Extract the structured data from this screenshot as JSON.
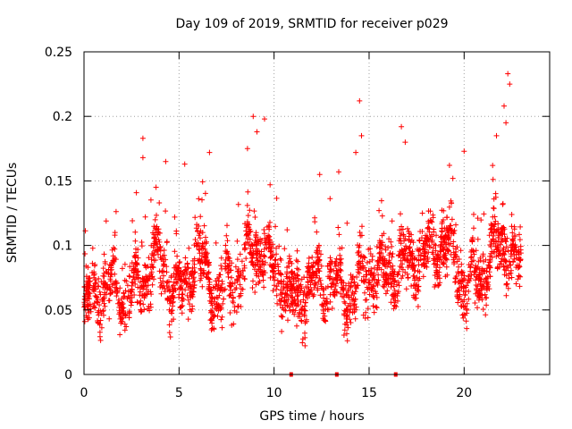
{
  "chart_data": {
    "type": "scatter",
    "title": "Day 109 of 2019, SRMTID for receiver p029",
    "xlabel": "GPS time / hours",
    "ylabel": "SRMTID / TECUs",
    "xlim": [
      0,
      24.5
    ],
    "ylim": [
      0,
      0.25
    ],
    "x_ticks": [
      0,
      5,
      10,
      15,
      20
    ],
    "x_tick_labels": [
      "0",
      "5",
      "10",
      "15",
      "20"
    ],
    "y_ticks": [
      0,
      0.05,
      0.1,
      0.15,
      0.2,
      0.25
    ],
    "y_tick_labels": [
      "0",
      "0.05",
      "0.1",
      "0.15",
      "0.2",
      "0.25"
    ],
    "grid": true,
    "marker": "plus",
    "series_color": "#ff0000",
    "series": [
      {
        "name": "SRMTID",
        "x_range": [
          0,
          23.0
        ],
        "y_range": [
          0.018,
          0.233
        ],
        "trend": [
          {
            "x": 0.0,
            "y": 0.05
          },
          {
            "x": 1.0,
            "y": 0.068
          },
          {
            "x": 2.0,
            "y": 0.062
          },
          {
            "x": 3.0,
            "y": 0.072
          },
          {
            "x": 4.0,
            "y": 0.09
          },
          {
            "x": 5.0,
            "y": 0.06
          },
          {
            "x": 6.0,
            "y": 0.092
          },
          {
            "x": 7.0,
            "y": 0.06
          },
          {
            "x": 8.0,
            "y": 0.075
          },
          {
            "x": 9.0,
            "y": 0.1
          },
          {
            "x": 10.0,
            "y": 0.085
          },
          {
            "x": 11.0,
            "y": 0.055
          },
          {
            "x": 12.0,
            "y": 0.068
          },
          {
            "x": 13.0,
            "y": 0.072
          },
          {
            "x": 14.0,
            "y": 0.06
          },
          {
            "x": 15.0,
            "y": 0.082
          },
          {
            "x": 16.0,
            "y": 0.078
          },
          {
            "x": 17.0,
            "y": 0.085
          },
          {
            "x": 18.0,
            "y": 0.095
          },
          {
            "x": 19.0,
            "y": 0.105
          },
          {
            "x": 20.0,
            "y": 0.07
          },
          {
            "x": 21.0,
            "y": 0.08
          },
          {
            "x": 22.0,
            "y": 0.105
          },
          {
            "x": 23.0,
            "y": 0.08
          }
        ],
        "outliers": [
          {
            "x": 3.1,
            "y": 0.183
          },
          {
            "x": 3.1,
            "y": 0.168
          },
          {
            "x": 4.3,
            "y": 0.165
          },
          {
            "x": 5.3,
            "y": 0.163
          },
          {
            "x": 6.6,
            "y": 0.172
          },
          {
            "x": 8.6,
            "y": 0.175
          },
          {
            "x": 8.9,
            "y": 0.2
          },
          {
            "x": 9.1,
            "y": 0.188
          },
          {
            "x": 9.5,
            "y": 0.198
          },
          {
            "x": 12.4,
            "y": 0.155
          },
          {
            "x": 13.4,
            "y": 0.157
          },
          {
            "x": 14.5,
            "y": 0.212
          },
          {
            "x": 14.6,
            "y": 0.185
          },
          {
            "x": 14.3,
            "y": 0.172
          },
          {
            "x": 16.7,
            "y": 0.192
          },
          {
            "x": 16.9,
            "y": 0.18
          },
          {
            "x": 20.0,
            "y": 0.173
          },
          {
            "x": 21.7,
            "y": 0.185
          },
          {
            "x": 21.5,
            "y": 0.162
          },
          {
            "x": 22.1,
            "y": 0.208
          },
          {
            "x": 22.3,
            "y": 0.233
          },
          {
            "x": 22.4,
            "y": 0.225
          },
          {
            "x": 22.2,
            "y": 0.195
          }
        ],
        "zero_markers": [
          10.9,
          13.3,
          16.4
        ]
      }
    ]
  }
}
